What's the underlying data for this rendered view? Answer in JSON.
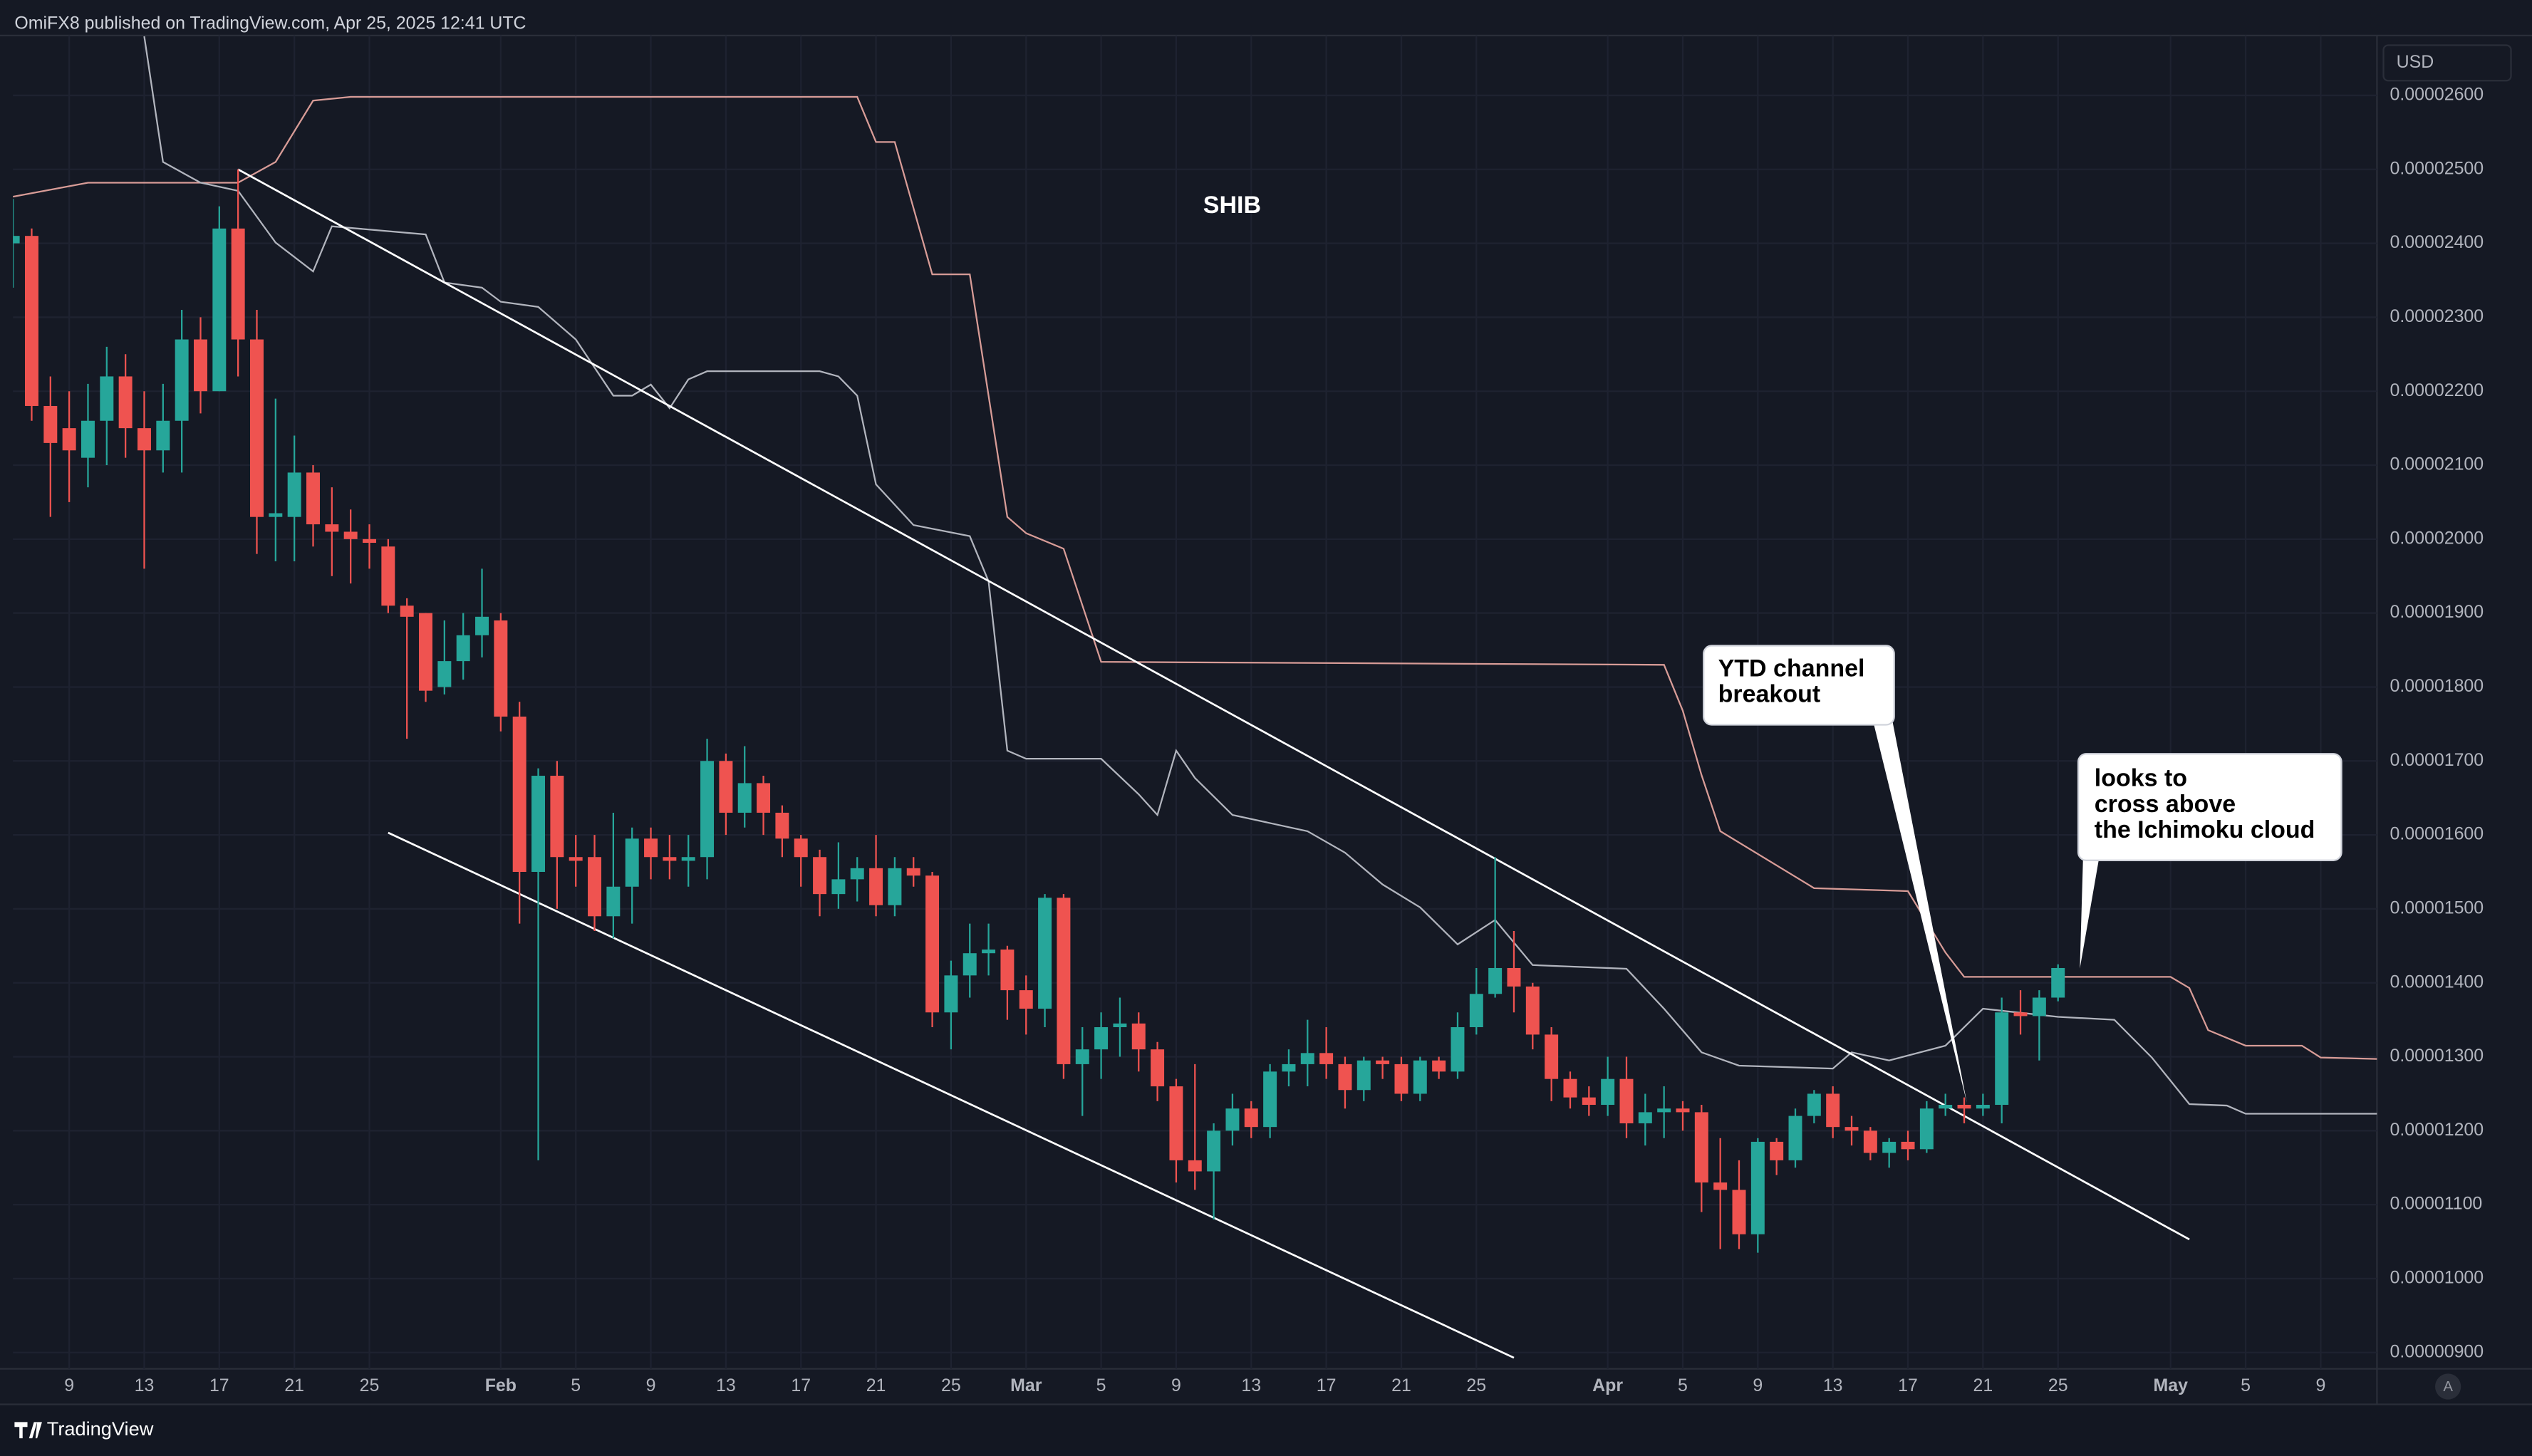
{
  "header": "OmiFX8 published on TradingView.com, Apr 25, 2025 12:41 UTC",
  "footer": "TradingView",
  "chart_data": {
    "type": "candlestick",
    "title": "SHIB",
    "currency": "USD",
    "scale_button": "A",
    "up_color": "#26a69a",
    "down_color": "#ef5350",
    "grid": true,
    "xlim": [
      "01-06",
      "05-12"
    ],
    "ylim": [
      8.78e-06,
      2.681e-05
    ],
    "xticks": [
      {
        "value": "01-09",
        "label": "9"
      },
      {
        "value": "01-13",
        "label": "13"
      },
      {
        "value": "01-17",
        "label": "17"
      },
      {
        "value": "01-21",
        "label": "21"
      },
      {
        "value": "01-25",
        "label": "25"
      },
      {
        "value": "02-01",
        "label": "Feb"
      },
      {
        "value": "02-05",
        "label": "5"
      },
      {
        "value": "02-09",
        "label": "9"
      },
      {
        "value": "02-13",
        "label": "13"
      },
      {
        "value": "02-17",
        "label": "17"
      },
      {
        "value": "02-21",
        "label": "21"
      },
      {
        "value": "02-25",
        "label": "25"
      },
      {
        "value": "03-01",
        "label": "Mar"
      },
      {
        "value": "03-05",
        "label": "5"
      },
      {
        "value": "03-09",
        "label": "9"
      },
      {
        "value": "03-13",
        "label": "13"
      },
      {
        "value": "03-17",
        "label": "17"
      },
      {
        "value": "03-21",
        "label": "21"
      },
      {
        "value": "03-25",
        "label": "25"
      },
      {
        "value": "04-01",
        "label": "Apr"
      },
      {
        "value": "04-05",
        "label": "5"
      },
      {
        "value": "04-09",
        "label": "9"
      },
      {
        "value": "04-13",
        "label": "13"
      },
      {
        "value": "04-17",
        "label": "17"
      },
      {
        "value": "04-21",
        "label": "21"
      },
      {
        "value": "04-25",
        "label": "25"
      },
      {
        "value": "05-01",
        "label": "May"
      },
      {
        "value": "05-05",
        "label": "5"
      },
      {
        "value": "05-09",
        "label": "9"
      }
    ],
    "yticks": [
      {
        "value": 9e-06,
        "label": "0.00000900"
      },
      {
        "value": 1e-05,
        "label": "0.00001000"
      },
      {
        "value": 1.1e-05,
        "label": "0.00001100"
      },
      {
        "value": 1.2e-05,
        "label": "0.00001200"
      },
      {
        "value": 1.3e-05,
        "label": "0.00001300"
      },
      {
        "value": 1.4e-05,
        "label": "0.00001400"
      },
      {
        "value": 1.5e-05,
        "label": "0.00001500"
      },
      {
        "value": 1.6e-05,
        "label": "0.00001600"
      },
      {
        "value": 1.7e-05,
        "label": "0.00001700"
      },
      {
        "value": 1.8e-05,
        "label": "0.00001800"
      },
      {
        "value": 1.9e-05,
        "label": "0.00001900"
      },
      {
        "value": 2e-05,
        "label": "0.00002000"
      },
      {
        "value": 2.1e-05,
        "label": "0.00002100"
      },
      {
        "value": 2.2e-05,
        "label": "0.00002200"
      },
      {
        "value": 2.3e-05,
        "label": "0.00002300"
      },
      {
        "value": 2.4e-05,
        "label": "0.00002400"
      },
      {
        "value": 2.5e-05,
        "label": "0.00002500"
      },
      {
        "value": 2.6e-05,
        "label": "0.00002600"
      }
    ],
    "x": [
      "01-06",
      "01-07",
      "01-08",
      "01-09",
      "01-10",
      "01-11",
      "01-12",
      "01-13",
      "01-14",
      "01-15",
      "01-16",
      "01-17",
      "01-18",
      "01-19",
      "01-20",
      "01-21",
      "01-22",
      "01-23",
      "01-24",
      "01-25",
      "01-26",
      "01-27",
      "01-28",
      "01-29",
      "01-30",
      "01-31",
      "02-01",
      "02-02",
      "02-03",
      "02-04",
      "02-05",
      "02-06",
      "02-07",
      "02-08",
      "02-09",
      "02-10",
      "02-11",
      "02-12",
      "02-13",
      "02-14",
      "02-15",
      "02-16",
      "02-17",
      "02-18",
      "02-19",
      "02-20",
      "02-21",
      "02-22",
      "02-23",
      "02-24",
      "02-25",
      "02-26",
      "02-27",
      "02-28",
      "03-01",
      "03-02",
      "03-03",
      "03-04",
      "03-05",
      "03-06",
      "03-07",
      "03-08",
      "03-09",
      "03-10",
      "03-11",
      "03-12",
      "03-13",
      "03-14",
      "03-15",
      "03-16",
      "03-17",
      "03-18",
      "03-19",
      "03-20",
      "03-21",
      "03-22",
      "03-23",
      "03-24",
      "03-25",
      "03-26",
      "03-27",
      "03-28",
      "03-29",
      "03-30",
      "03-31",
      "04-01",
      "04-02",
      "04-03",
      "04-04",
      "04-05",
      "04-06",
      "04-07",
      "04-08",
      "04-09",
      "04-10",
      "04-11",
      "04-12",
      "04-13",
      "04-14",
      "04-15",
      "04-16",
      "04-17",
      "04-18",
      "04-19",
      "04-20",
      "04-21",
      "04-22",
      "04-23",
      "04-24",
      "04-25"
    ],
    "open": [
      2.4e-05,
      2.41e-05,
      2.18e-05,
      2.15e-05,
      2.11e-05,
      2.16e-05,
      2.22e-05,
      2.15e-05,
      2.12e-05,
      2.16e-05,
      2.27e-05,
      2.2e-05,
      2.42e-05,
      2.27e-05,
      2.03e-05,
      2.03e-05,
      2.09e-05,
      2.02e-05,
      2.01e-05,
      2e-05,
      1.99e-05,
      1.91e-05,
      1.9e-05,
      1.8e-05,
      1.835e-05,
      1.87e-05,
      1.89e-05,
      1.76e-05,
      1.55e-05,
      1.68e-05,
      1.57e-05,
      1.57e-05,
      1.49e-05,
      1.53e-05,
      1.595e-05,
      1.57e-05,
      1.565e-05,
      1.57e-05,
      1.7e-05,
      1.63e-05,
      1.67e-05,
      1.63e-05,
      1.595e-05,
      1.57e-05,
      1.52e-05,
      1.54e-05,
      1.555e-05,
      1.505e-05,
      1.555e-05,
      1.545e-05,
      1.36e-05,
      1.41e-05,
      1.44e-05,
      1.445e-05,
      1.39e-05,
      1.365e-05,
      1.515e-05,
      1.29e-05,
      1.31e-05,
      1.34e-05,
      1.345e-05,
      1.31e-05,
      1.26e-05,
      1.16e-05,
      1.145e-05,
      1.2e-05,
      1.23e-05,
      1.205e-05,
      1.28e-05,
      1.29e-05,
      1.305e-05,
      1.29e-05,
      1.255e-05,
      1.295e-05,
      1.29e-05,
      1.25e-05,
      1.295e-05,
      1.28e-05,
      1.34e-05,
      1.385e-05,
      1.42e-05,
      1.395e-05,
      1.33e-05,
      1.27e-05,
      1.245e-05,
      1.235e-05,
      1.27e-05,
      1.21e-05,
      1.225e-05,
      1.23e-05,
      1.225e-05,
      1.13e-05,
      1.12e-05,
      1.06e-05,
      1.185e-05,
      1.16e-05,
      1.22e-05,
      1.25e-05,
      1.205e-05,
      1.2e-05,
      1.17e-05,
      1.185e-05,
      1.175e-05,
      1.23e-05,
      1.235e-05,
      1.23e-05,
      1.235e-05,
      1.36e-05,
      1.355e-05,
      1.38e-05
    ],
    "high": [
      2.46e-05,
      2.42e-05,
      2.22e-05,
      2.2e-05,
      2.21e-05,
      2.26e-05,
      2.25e-05,
      2.2e-05,
      2.21e-05,
      2.31e-05,
      2.3e-05,
      2.45e-05,
      2.5e-05,
      2.31e-05,
      2.19e-05,
      2.14e-05,
      2.1e-05,
      2.07e-05,
      2.04e-05,
      2.02e-05,
      2e-05,
      1.92e-05,
      1.9e-05,
      1.89e-05,
      1.9e-05,
      1.96e-05,
      1.9e-05,
      1.78e-05,
      1.69e-05,
      1.7e-05,
      1.6e-05,
      1.6e-05,
      1.63e-05,
      1.61e-05,
      1.61e-05,
      1.6e-05,
      1.6e-05,
      1.73e-05,
      1.71e-05,
      1.72e-05,
      1.68e-05,
      1.64e-05,
      1.6e-05,
      1.58e-05,
      1.59e-05,
      1.57e-05,
      1.6e-05,
      1.57e-05,
      1.57e-05,
      1.55e-05,
      1.43e-05,
      1.48e-05,
      1.48e-05,
      1.45e-05,
      1.41e-05,
      1.52e-05,
      1.52e-05,
      1.34e-05,
      1.36e-05,
      1.38e-05,
      1.36e-05,
      1.32e-05,
      1.27e-05,
      1.29e-05,
      1.21e-05,
      1.25e-05,
      1.24e-05,
      1.29e-05,
      1.31e-05,
      1.35e-05,
      1.34e-05,
      1.3e-05,
      1.3e-05,
      1.3e-05,
      1.3e-05,
      1.3e-05,
      1.3e-05,
      1.36e-05,
      1.42e-05,
      1.57e-05,
      1.47e-05,
      1.4e-05,
      1.34e-05,
      1.28e-05,
      1.26e-05,
      1.3e-05,
      1.3e-05,
      1.25e-05,
      1.26e-05,
      1.24e-05,
      1.235e-05,
      1.19e-05,
      1.16e-05,
      1.19e-05,
      1.19e-05,
      1.23e-05,
      1.255e-05,
      1.26e-05,
      1.22e-05,
      1.205e-05,
      1.19e-05,
      1.2e-05,
      1.24e-05,
      1.25e-05,
      1.245e-05,
      1.25e-05,
      1.38e-05,
      1.39e-05,
      1.39e-05,
      1.425e-05
    ],
    "low": [
      2.34e-05,
      2.16e-05,
      2.03e-05,
      2.05e-05,
      2.07e-05,
      2.1e-05,
      2.11e-05,
      1.96e-05,
      2.09e-05,
      2.09e-05,
      2.17e-05,
      2.2e-05,
      2.22e-05,
      1.98e-05,
      1.97e-05,
      1.97e-05,
      1.99e-05,
      1.95e-05,
      1.94e-05,
      1.96e-05,
      1.9e-05,
      1.73e-05,
      1.78e-05,
      1.79e-05,
      1.81e-05,
      1.84e-05,
      1.74e-05,
      1.48e-05,
      1.16e-05,
      1.5e-05,
      1.53e-05,
      1.47e-05,
      1.46e-05,
      1.48e-05,
      1.54e-05,
      1.54e-05,
      1.53e-05,
      1.54e-05,
      1.6e-05,
      1.61e-05,
      1.6e-05,
      1.57e-05,
      1.53e-05,
      1.49e-05,
      1.5e-05,
      1.51e-05,
      1.49e-05,
      1.49e-05,
      1.53e-05,
      1.34e-05,
      1.31e-05,
      1.38e-05,
      1.41e-05,
      1.35e-05,
      1.33e-05,
      1.34e-05,
      1.27e-05,
      1.22e-05,
      1.27e-05,
      1.3e-05,
      1.28e-05,
      1.24e-05,
      1.13e-05,
      1.12e-05,
      1.08e-05,
      1.18e-05,
      1.19e-05,
      1.19e-05,
      1.26e-05,
      1.26e-05,
      1.27e-05,
      1.23e-05,
      1.24e-05,
      1.27e-05,
      1.24e-05,
      1.24e-05,
      1.27e-05,
      1.27e-05,
      1.33e-05,
      1.38e-05,
      1.36e-05,
      1.31e-05,
      1.24e-05,
      1.23e-05,
      1.22e-05,
      1.22e-05,
      1.19e-05,
      1.18e-05,
      1.19e-05,
      1.2e-05,
      1.09e-05,
      1.04e-05,
      1.04e-05,
      1.035e-05,
      1.14e-05,
      1.15e-05,
      1.21e-05,
      1.19e-05,
      1.18e-05,
      1.16e-05,
      1.15e-05,
      1.16e-05,
      1.17e-05,
      1.22e-05,
      1.21e-05,
      1.22e-05,
      1.21e-05,
      1.33e-05,
      1.295e-05,
      1.375e-05
    ],
    "close": [
      2.41e-05,
      2.18e-05,
      2.13e-05,
      2.12e-05,
      2.16e-05,
      2.22e-05,
      2.15e-05,
      2.12e-05,
      2.16e-05,
      2.27e-05,
      2.2e-05,
      2.42e-05,
      2.27e-05,
      2.03e-05,
      2.035e-05,
      2.09e-05,
      2.02e-05,
      2.01e-05,
      2e-05,
      1.995e-05,
      1.91e-05,
      1.895e-05,
      1.795e-05,
      1.835e-05,
      1.87e-05,
      1.895e-05,
      1.76e-05,
      1.55e-05,
      1.68e-05,
      1.57e-05,
      1.565e-05,
      1.49e-05,
      1.53e-05,
      1.595e-05,
      1.57e-05,
      1.565e-05,
      1.57e-05,
      1.7e-05,
      1.63e-05,
      1.67e-05,
      1.63e-05,
      1.595e-05,
      1.57e-05,
      1.52e-05,
      1.54e-05,
      1.555e-05,
      1.505e-05,
      1.555e-05,
      1.545e-05,
      1.36e-05,
      1.41e-05,
      1.44e-05,
      1.445e-05,
      1.39e-05,
      1.365e-05,
      1.515e-05,
      1.29e-05,
      1.31e-05,
      1.34e-05,
      1.345e-05,
      1.31e-05,
      1.26e-05,
      1.16e-05,
      1.145e-05,
      1.2e-05,
      1.23e-05,
      1.205e-05,
      1.28e-05,
      1.29e-05,
      1.305e-05,
      1.29e-05,
      1.255e-05,
      1.295e-05,
      1.29e-05,
      1.25e-05,
      1.295e-05,
      1.28e-05,
      1.34e-05,
      1.385e-05,
      1.42e-05,
      1.395e-05,
      1.33e-05,
      1.27e-05,
      1.245e-05,
      1.235e-05,
      1.27e-05,
      1.21e-05,
      1.225e-05,
      1.23e-05,
      1.225e-05,
      1.13e-05,
      1.12e-05,
      1.06e-05,
      1.185e-05,
      1.16e-05,
      1.22e-05,
      1.25e-05,
      1.205e-05,
      1.2e-05,
      1.17e-05,
      1.185e-05,
      1.175e-05,
      1.23e-05,
      1.235e-05,
      1.23e-05,
      1.235e-05,
      1.36e-05,
      1.355e-05,
      1.38e-05,
      1.42e-05
    ],
    "lines": [
      {
        "color": "#d89c97",
        "x": [
          "01-06",
          "01-10",
          "01-18",
          "01-20",
          "01-22",
          "01-24",
          "02-20",
          "02-21",
          "02-22",
          "02-24",
          "02-26",
          "02-28",
          "03-01",
          "03-03",
          "03-05",
          "04-04",
          "04-05",
          "04-06",
          "04-07",
          "04-12",
          "04-17",
          "04-19",
          "04-20",
          "05-01",
          "05-02",
          "05-03",
          "05-05",
          "05-08",
          "05-09",
          "05-12"
        ],
        "values": [
          2.463e-05,
          2.482e-05,
          2.482e-05,
          2.51e-05,
          2.593e-05,
          2.598e-05,
          2.598e-05,
          2.537e-05,
          2.537e-05,
          2.358e-05,
          2.358e-05,
          2.03e-05,
          2.008e-05,
          1.987e-05,
          1.834e-05,
          1.83e-05,
          1.768e-05,
          1.681e-05,
          1.605e-05,
          1.528e-05,
          1.524e-05,
          1.441e-05,
          1.408e-05,
          1.408e-05,
          1.393e-05,
          1.336e-05,
          1.315e-05,
          1.315e-05,
          1.299e-05,
          1.297e-05
        ]
      },
      {
        "color": "#b2b5be",
        "x": [
          "01-13",
          "01-14",
          "01-16",
          "01-18",
          "01-20",
          "01-22",
          "01-23",
          "01-28",
          "01-29",
          "01-31",
          "02-01",
          "02-03",
          "02-05",
          "02-07",
          "02-08",
          "02-09",
          "02-10",
          "02-11",
          "02-12",
          "02-18",
          "02-19",
          "02-20",
          "02-21",
          "02-23",
          "02-26",
          "02-27",
          "02-28",
          "03-01",
          "03-05",
          "03-07",
          "03-08",
          "03-09",
          "03-10",
          "03-12",
          "03-16",
          "03-18",
          "03-20",
          "03-22",
          "03-24",
          "03-26",
          "03-28",
          "04-02",
          "04-04",
          "04-06",
          "04-08",
          "04-13",
          "04-14",
          "04-16",
          "04-19",
          "04-21",
          "04-25",
          "04-28",
          "04-30",
          "05-02",
          "05-04",
          "05-05",
          "05-12"
        ],
        "values": [
          2.68e-05,
          2.51e-05,
          2.482e-05,
          2.471e-05,
          2.401e-05,
          2.362e-05,
          2.423e-05,
          2.412e-05,
          2.347e-05,
          2.34e-05,
          2.321e-05,
          2.314e-05,
          2.27e-05,
          2.194e-05,
          2.194e-05,
          2.209e-05,
          2.177e-05,
          2.216e-05,
          2.227e-05,
          2.227e-05,
          2.22e-05,
          2.194e-05,
          2.074e-05,
          2.019e-05,
          2.004e-05,
          1.943e-05,
          1.714e-05,
          1.703e-05,
          1.703e-05,
          1.655e-05,
          1.627e-05,
          1.714e-05,
          1.677e-05,
          1.627e-05,
          1.605e-05,
          1.576e-05,
          1.533e-05,
          1.502e-05,
          1.452e-05,
          1.485e-05,
          1.424e-05,
          1.419e-05,
          1.365e-05,
          1.306e-05,
          1.288e-05,
          1.284e-05,
          1.306e-05,
          1.295e-05,
          1.315e-05,
          1.365e-05,
          1.354e-05,
          1.35e-05,
          1.299e-05,
          1.236e-05,
          1.234e-05,
          1.223e-05,
          1.223e-05
        ]
      }
    ],
    "trendlines": [
      {
        "color": "#ffffff",
        "x": [
          "01-18",
          "05-02"
        ],
        "values": [
          2.5e-05,
          1.053e-05
        ]
      },
      {
        "color": "#ffffff",
        "x": [
          "01-26",
          "03-27"
        ],
        "values": [
          1.603e-05,
          8.93e-06
        ]
      }
    ],
    "annotations": [
      {
        "lines": [
          "YTD channel",
          "breakout"
        ]
      },
      {
        "lines": [
          "looks to",
          "cross above",
          "the Ichimoku cloud"
        ]
      }
    ]
  }
}
